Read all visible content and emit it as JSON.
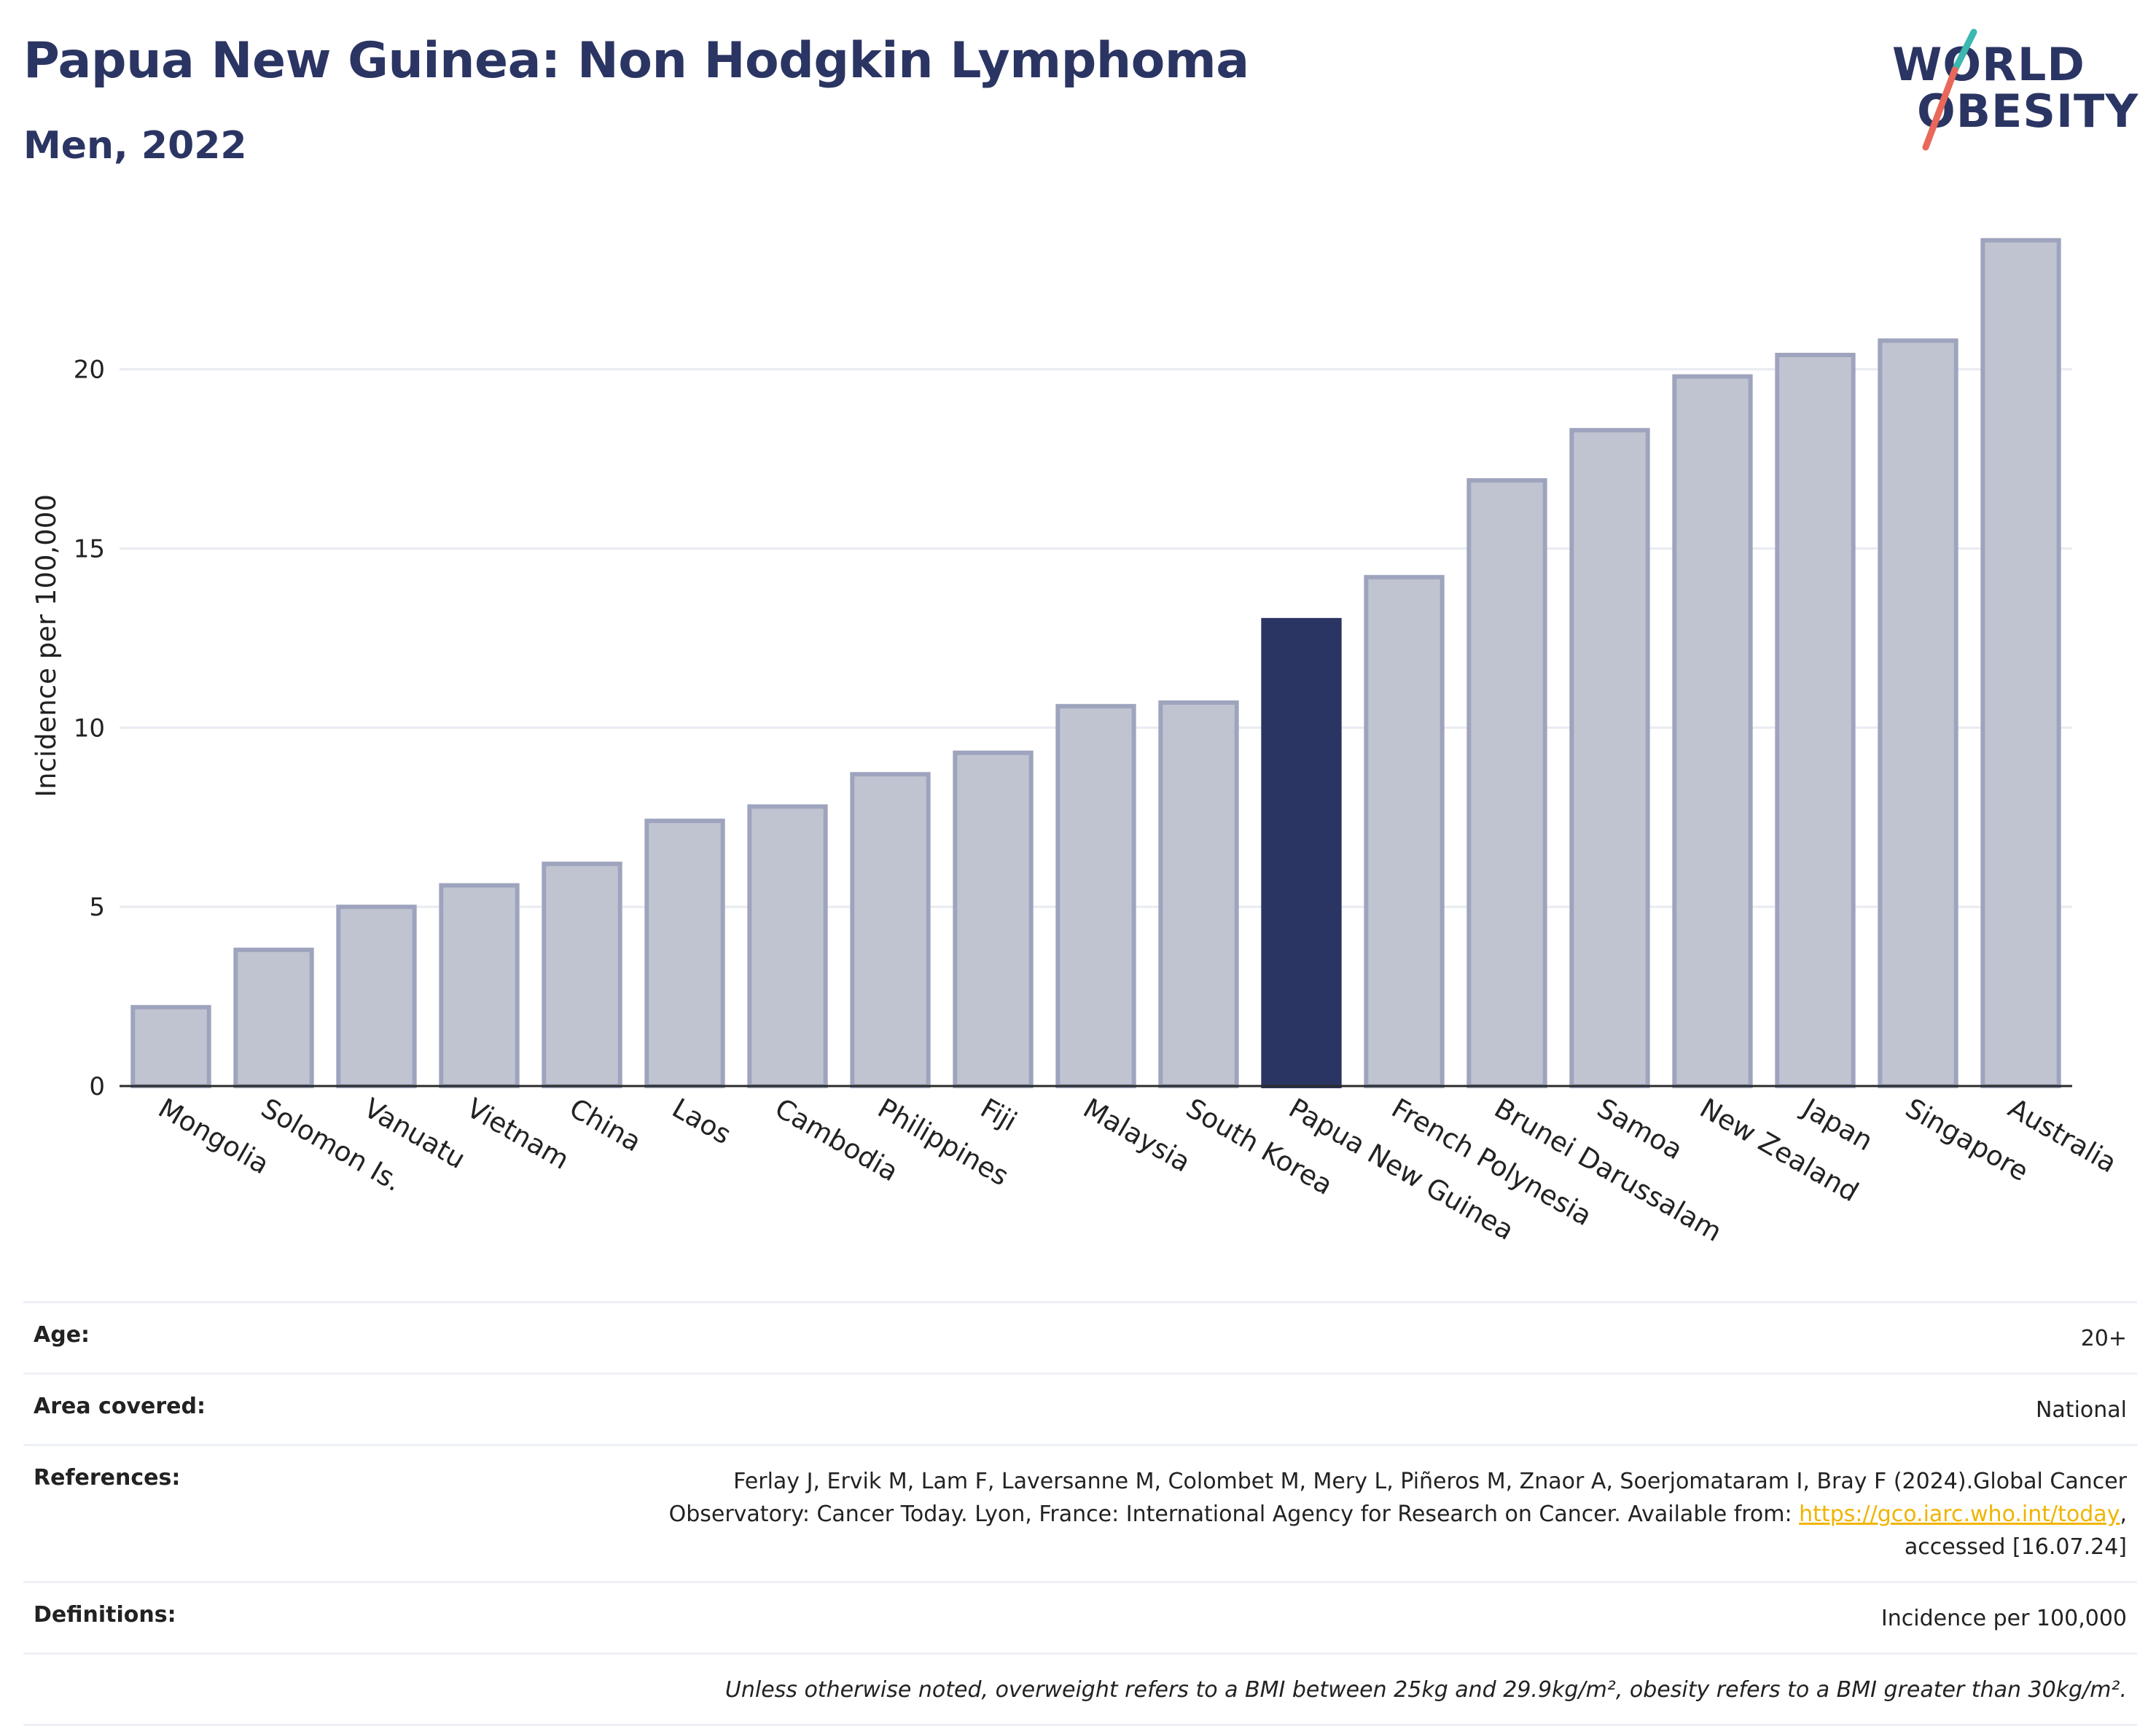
{
  "title": "Papua New Guinea: Non Hodgkin Lymphoma",
  "subtitle": "Men, 2022",
  "logo": {
    "line1": "WORLD",
    "line2": "OBESITY"
  },
  "colors": {
    "highlight": "#2b3563",
    "bar": "#c0c4d1",
    "bar_stroke": "#9ea4bd",
    "axis": "#2b2b2b",
    "grid": "#e9ebf2",
    "link": "#f0b400"
  },
  "chart_data": {
    "type": "bar",
    "ylabel": "Incidence per 100,000",
    "xlabel": "",
    "ylim": [
      0,
      24
    ],
    "yticks": [
      0,
      5,
      10,
      15,
      20
    ],
    "grid": true,
    "highlight": "Papua New Guinea",
    "categories": [
      "Mongolia",
      "Solomon Is.",
      "Vanuatu",
      "Vietnam",
      "China",
      "Laos",
      "Cambodia",
      "Philippines",
      "Fiji",
      "Malaysia",
      "South Korea",
      "Papua New Guinea",
      "French Polynesia",
      "Brunei Darussalam",
      "Samoa",
      "New Zealand",
      "Japan",
      "Singapore",
      "Australia"
    ],
    "values": [
      2.2,
      3.8,
      5.0,
      5.6,
      6.2,
      7.4,
      7.8,
      8.7,
      9.3,
      10.6,
      10.7,
      13.0,
      14.2,
      16.9,
      18.3,
      19.8,
      20.4,
      20.8,
      23.6
    ]
  },
  "meta": {
    "age_label": "Age:",
    "age_value": "20+",
    "area_label": "Area covered:",
    "area_value": "National",
    "references_label": "References:",
    "references_line1": "Ferlay J, Ervik M, Lam F, Laversanne M, Colombet M, Mery L, Piñeros M, Znaor A, Soerjomataram I, Bray F (2024).Global Cancer",
    "references_line2_pre": "Observatory: Cancer Today. Lyon, France: International Agency for Research on Cancer. Available from: ",
    "references_link": "https://gco.iarc.who.int/today",
    "references_line2_post": ",",
    "references_line3": "accessed [16.07.24]",
    "definitions_label": "Definitions:",
    "definitions_value": "Incidence per 100,000",
    "note": "Unless otherwise noted, overweight refers to a BMI between 25kg and 29.9kg/m², obesity refers to a BMI greater than 30kg/m²."
  }
}
